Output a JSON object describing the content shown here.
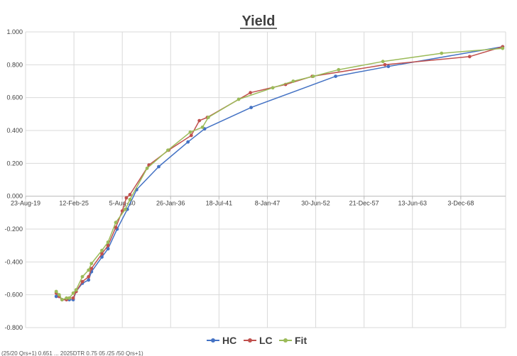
{
  "chart_data": {
    "type": "line",
    "title": "Yield",
    "xlabel": "",
    "ylabel": "",
    "x_type": "date",
    "xlim": [
      "2019-08-23",
      "2074-01-01"
    ],
    "ylim": [
      -0.8,
      1.0
    ],
    "y_ticks": [
      1.0,
      0.8,
      0.6,
      0.4,
      0.2,
      0.0,
      -0.2,
      -0.4,
      -0.6,
      -0.8
    ],
    "y_tick_labels": [
      "1.000",
      "0.800",
      "0.600",
      "0.400",
      "0.200",
      "0.000",
      "-0.200",
      "-0.400",
      "-0.600",
      "-0.800"
    ],
    "x_ticks": [
      "2019-08-23",
      "2025-02-12",
      "2030-08-05",
      "2036-01-26",
      "2041-07-18",
      "2047-01-08",
      "2052-06-30",
      "2057-12-21",
      "2063-06-13",
      "2068-12-03"
    ],
    "x_tick_labels": [
      "23-Aug-19",
      "12-Feb-25",
      "5-Aug-30",
      "26-Jan-36",
      "18-Jul-41",
      "8-Jan-47",
      "30-Jun-52",
      "21-Dec-57",
      "13-Jun-63",
      "3-Dec-68"
    ],
    "grid": true,
    "legend": "bottom",
    "series": [
      {
        "name": "HC",
        "color": "#4472C4",
        "points": [
          [
            "2023-02-13",
            -0.61
          ],
          [
            "2023-06-13",
            -0.61
          ],
          [
            "2023-10-11",
            -0.63
          ],
          [
            "2024-04-09",
            -0.63
          ],
          [
            "2024-08-06",
            -0.63
          ],
          [
            "2025-01-14",
            -0.63
          ],
          [
            "2025-05-13",
            -0.58
          ],
          [
            "2026-01-27",
            -0.53
          ],
          [
            "2026-10-11",
            -0.51
          ],
          [
            "2027-02-07",
            -0.46
          ],
          [
            "2028-04-13",
            -0.37
          ],
          [
            "2028-12-24",
            -0.32
          ],
          [
            "2030-01-03",
            -0.2
          ],
          [
            "2031-03-02",
            -0.08
          ],
          [
            "2032-03-22",
            0.04
          ],
          [
            "2034-09-21",
            0.18
          ],
          [
            "2038-01-12",
            0.33
          ],
          [
            "2039-11-30",
            0.41
          ],
          [
            "2045-03-06",
            0.54
          ],
          [
            "2054-10-01",
            0.73
          ],
          [
            "2060-09-21",
            0.79
          ],
          [
            "2073-08-31",
            0.91
          ]
        ]
      },
      {
        "name": "LC",
        "color": "#C0504D",
        "points": [
          [
            "2023-02-13",
            -0.59
          ],
          [
            "2023-06-13",
            -0.61
          ],
          [
            "2023-10-11",
            -0.63
          ],
          [
            "2024-04-09",
            -0.63
          ],
          [
            "2024-08-06",
            -0.62
          ],
          [
            "2025-01-14",
            -0.62
          ],
          [
            "2025-05-13",
            -0.58
          ],
          [
            "2026-01-27",
            -0.52
          ],
          [
            "2026-10-11",
            -0.49
          ],
          [
            "2027-02-07",
            -0.44
          ],
          [
            "2028-04-13",
            -0.35
          ],
          [
            "2028-12-24",
            -0.3
          ],
          [
            "2029-11-07",
            -0.19
          ],
          [
            "2030-08-05",
            -0.09
          ],
          [
            "2031-01-19",
            -0.01
          ],
          [
            "2031-06-18",
            0.01
          ],
          [
            "2033-08-10",
            0.19
          ],
          [
            "2035-11-01",
            0.28
          ],
          [
            "2038-05-28",
            0.37
          ],
          [
            "2039-04-27",
            0.46
          ],
          [
            "2040-03-25",
            0.48
          ],
          [
            "2045-02-07",
            0.63
          ],
          [
            "2049-01-29",
            0.68
          ],
          [
            "2052-02-09",
            0.73
          ],
          [
            "2060-05-01",
            0.8
          ],
          [
            "2069-12-05",
            0.85
          ],
          [
            "2073-08-31",
            0.91
          ]
        ]
      },
      {
        "name": "Fit",
        "color": "#9BBB59",
        "points": [
          [
            "2023-02-13",
            -0.58
          ],
          [
            "2023-06-13",
            -0.6
          ],
          [
            "2023-10-11",
            -0.63
          ],
          [
            "2024-04-09",
            -0.62
          ],
          [
            "2024-08-06",
            -0.62
          ],
          [
            "2025-01-14",
            -0.59
          ],
          [
            "2025-05-13",
            -0.57
          ],
          [
            "2026-01-27",
            -0.49
          ],
          [
            "2026-10-11",
            -0.45
          ],
          [
            "2027-02-07",
            -0.41
          ],
          [
            "2028-04-13",
            -0.33
          ],
          [
            "2028-12-24",
            -0.28
          ],
          [
            "2029-11-07",
            -0.16
          ],
          [
            "2030-12-06",
            -0.08
          ],
          [
            "2031-06-18",
            -0.02
          ],
          [
            "2033-05-27",
            0.17
          ],
          [
            "2035-10-04",
            0.28
          ],
          [
            "2038-04-16",
            0.39
          ],
          [
            "2039-09-04",
            0.42
          ],
          [
            "2040-05-03",
            0.48
          ],
          [
            "2043-10-10",
            0.59
          ],
          [
            "2047-08-21",
            0.66
          ],
          [
            "2049-12-12",
            0.7
          ],
          [
            "2052-03-23",
            0.73
          ],
          [
            "2055-02-03",
            0.77
          ],
          [
            "2060-02-09",
            0.82
          ],
          [
            "2066-09-30",
            0.87
          ],
          [
            "2073-08-31",
            0.9
          ]
        ]
      }
    ],
    "footer_text": "(25/20 Qrs+1) 0.651 ... 2025DTR 0.75 05 /25 /50 Qrs+1)"
  }
}
